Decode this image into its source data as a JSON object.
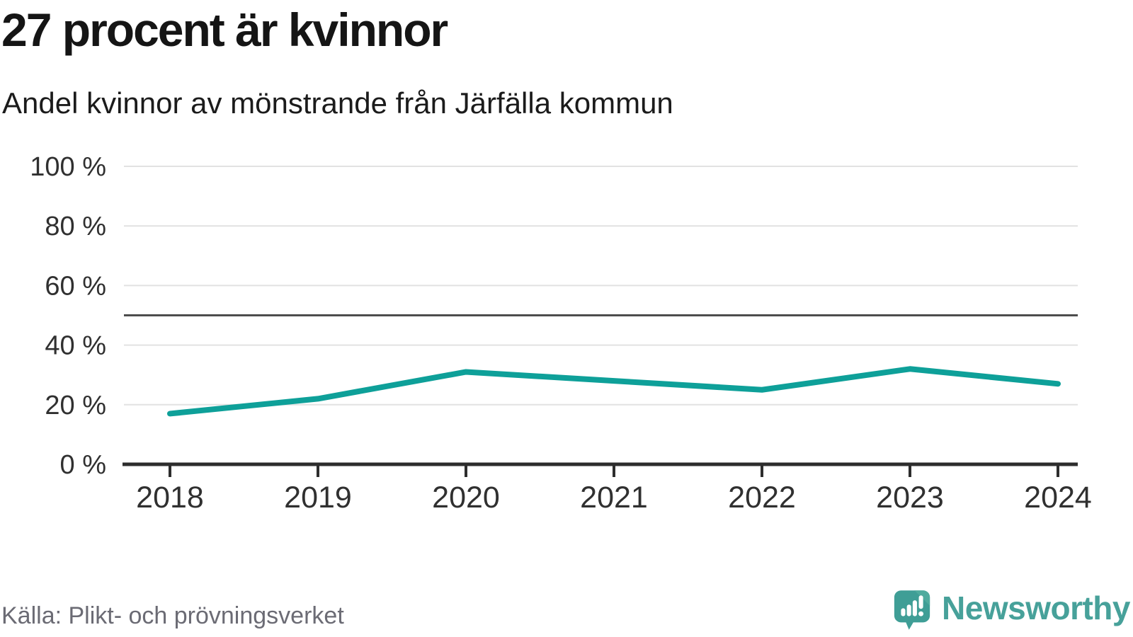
{
  "header": {
    "title": "27 procent är kvinnor",
    "subtitle": "Andel kvinnor av mönstrande från Järfälla kommun"
  },
  "chart_data": {
    "type": "line",
    "x": [
      2018,
      2019,
      2020,
      2021,
      2022,
      2023,
      2024
    ],
    "series": [
      {
        "name": "Andel kvinnor av mönstrande",
        "values": [
          17,
          22,
          31,
          28,
          25,
          32,
          27
        ]
      }
    ],
    "title": "27 procent är kvinnor",
    "subtitle": "Andel kvinnor av mönstrande från Järfälla kommun",
    "xlabel": "",
    "ylabel": "",
    "ylim": [
      0,
      100
    ],
    "yticks": [
      0,
      20,
      40,
      60,
      80,
      100
    ],
    "ytick_labels": [
      "0 %",
      "20 %",
      "40 %",
      "60 %",
      "80 %",
      "100 %"
    ],
    "xtick_labels": [
      "2018",
      "2019",
      "2020",
      "2021",
      "2022",
      "2023",
      "2024"
    ],
    "reference_line": 50,
    "grid": "horizontal",
    "legend": "none"
  },
  "footer": {
    "source": "Källa: Plikt- och prövningsverket",
    "brand": "Newsworthy"
  },
  "colors": {
    "line": "#0ea099",
    "reference_line": "#4d4d4d",
    "axis": "#2d2d2d",
    "grid": "#e2e2e2",
    "tick_label": "#303030",
    "brand_bubble": "#3f9e96",
    "wordmark": "#47a19a"
  }
}
